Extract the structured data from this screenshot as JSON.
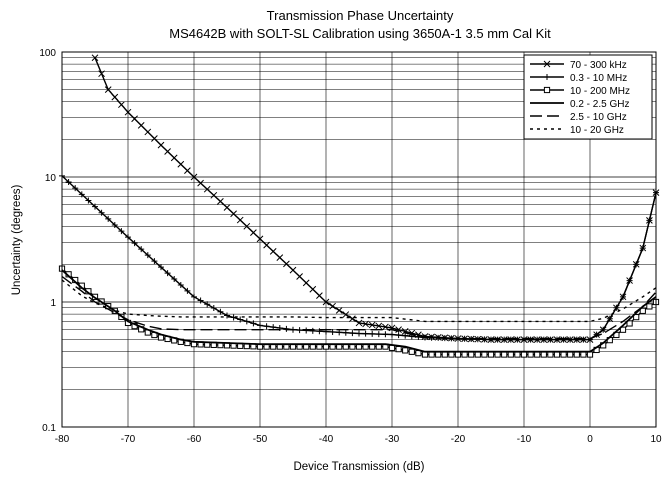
{
  "chart_data": {
    "type": "line",
    "title": "Transmission Phase Uncertainty",
    "subtitle": "MS4642B with SOLT-SL Calibration using 3650A-1 3.5 mm Cal Kit",
    "xlabel": "Device Transmission (dB)",
    "ylabel": "Uncertainty (degrees)",
    "xlim": [
      -80,
      10
    ],
    "ylim": [
      0.1,
      100
    ],
    "yscale": "log",
    "grid": true,
    "legend_position": "top-right",
    "x_ticks": [
      "-80",
      "-70",
      "-60",
      "-50",
      "-40",
      "-30",
      "-20",
      "-10",
      "0",
      "10"
    ],
    "y_ticks": [
      "100",
      "10",
      "1",
      "0.1"
    ],
    "series": [
      {
        "name": "70 - 300 kHz",
        "marker": "x",
        "x": [
          -75,
          -73,
          -70,
          -65,
          -60,
          -55,
          -50,
          -45,
          -40,
          -35,
          -30,
          -25,
          -20,
          -15,
          -10,
          -5,
          0,
          2,
          5,
          8,
          10
        ],
        "y": [
          90,
          50,
          33,
          18,
          10,
          5.7,
          3.2,
          1.8,
          1.0,
          0.68,
          0.62,
          0.53,
          0.51,
          0.5,
          0.5,
          0.5,
          0.5,
          0.6,
          1.1,
          2.7,
          7.5
        ]
      },
      {
        "name": "0.3 - 10 MHz",
        "marker": "+",
        "x": [
          -80,
          -75,
          -70,
          -65,
          -60,
          -55,
          -50,
          -45,
          -40,
          -35,
          -30,
          -25,
          -20,
          -15,
          -10,
          -5,
          0,
          2,
          5,
          8,
          10
        ],
        "y": [
          10.2,
          5.8,
          3.3,
          1.9,
          1.1,
          0.78,
          0.65,
          0.6,
          0.58,
          0.56,
          0.55,
          0.52,
          0.51,
          0.5,
          0.5,
          0.5,
          0.5,
          0.6,
          1.1,
          2.7,
          7.5
        ]
      },
      {
        "name": "10 - 200 MHz",
        "marker": "square",
        "x": [
          -80,
          -77,
          -75,
          -72,
          -70,
          -67,
          -65,
          -62,
          -60,
          -55,
          -50,
          -45,
          -40,
          -35,
          -31,
          -28,
          -25,
          -20,
          -15,
          -10,
          -5,
          0,
          2,
          5,
          8,
          10
        ],
        "y": [
          1.85,
          1.35,
          1.1,
          0.85,
          0.68,
          0.57,
          0.52,
          0.48,
          0.46,
          0.45,
          0.44,
          0.44,
          0.44,
          0.44,
          0.44,
          0.41,
          0.38,
          0.38,
          0.38,
          0.38,
          0.38,
          0.38,
          0.45,
          0.6,
          0.85,
          1.0
        ]
      },
      {
        "name": "0.2 - 2.5 GHz",
        "marker": "none",
        "x": [
          -80,
          -77,
          -75,
          -72,
          -70,
          -67,
          -65,
          -62,
          -60,
          -55,
          -50,
          -45,
          -40,
          -35,
          -31,
          -28,
          -25,
          -20,
          -15,
          -10,
          -5,
          0,
          2,
          5,
          8,
          10
        ],
        "y": [
          1.8,
          1.3,
          1.08,
          0.85,
          0.7,
          0.6,
          0.55,
          0.5,
          0.48,
          0.47,
          0.46,
          0.46,
          0.46,
          0.46,
          0.46,
          0.44,
          0.4,
          0.4,
          0.4,
          0.4,
          0.4,
          0.4,
          0.47,
          0.65,
          0.92,
          1.1
        ]
      },
      {
        "name": "2.5 - 10 GHz",
        "marker": "none",
        "x": [
          -80,
          -77,
          -75,
          -72,
          -70,
          -67,
          -65,
          -62,
          -60,
          -55,
          -50,
          -45,
          -40,
          -35,
          -30,
          -25,
          -20,
          -15,
          -10,
          -5,
          0,
          2,
          5,
          8,
          10
        ],
        "y": [
          1.6,
          1.22,
          1.0,
          0.82,
          0.72,
          0.64,
          0.61,
          0.6,
          0.6,
          0.6,
          0.6,
          0.6,
          0.6,
          0.6,
          0.6,
          0.52,
          0.51,
          0.51,
          0.51,
          0.51,
          0.51,
          0.56,
          0.7,
          0.92,
          1.2
        ]
      },
      {
        "name": "10 - 20 GHz",
        "marker": "none",
        "x": [
          -80,
          -77,
          -75,
          -72,
          -70,
          -67,
          -65,
          -62,
          -60,
          -55,
          -50,
          -45,
          -40,
          -35,
          -30,
          -25,
          -20,
          -15,
          -10,
          -5,
          0,
          2,
          5,
          8,
          10
        ],
        "y": [
          1.5,
          1.12,
          0.98,
          0.86,
          0.8,
          0.78,
          0.77,
          0.76,
          0.76,
          0.76,
          0.76,
          0.76,
          0.75,
          0.75,
          0.75,
          0.7,
          0.7,
          0.7,
          0.7,
          0.7,
          0.7,
          0.74,
          0.88,
          1.1,
          1.3
        ]
      }
    ],
    "series_styles": [
      "solid",
      "solid",
      "solid",
      "solid",
      "dashed",
      "dotted"
    ]
  }
}
